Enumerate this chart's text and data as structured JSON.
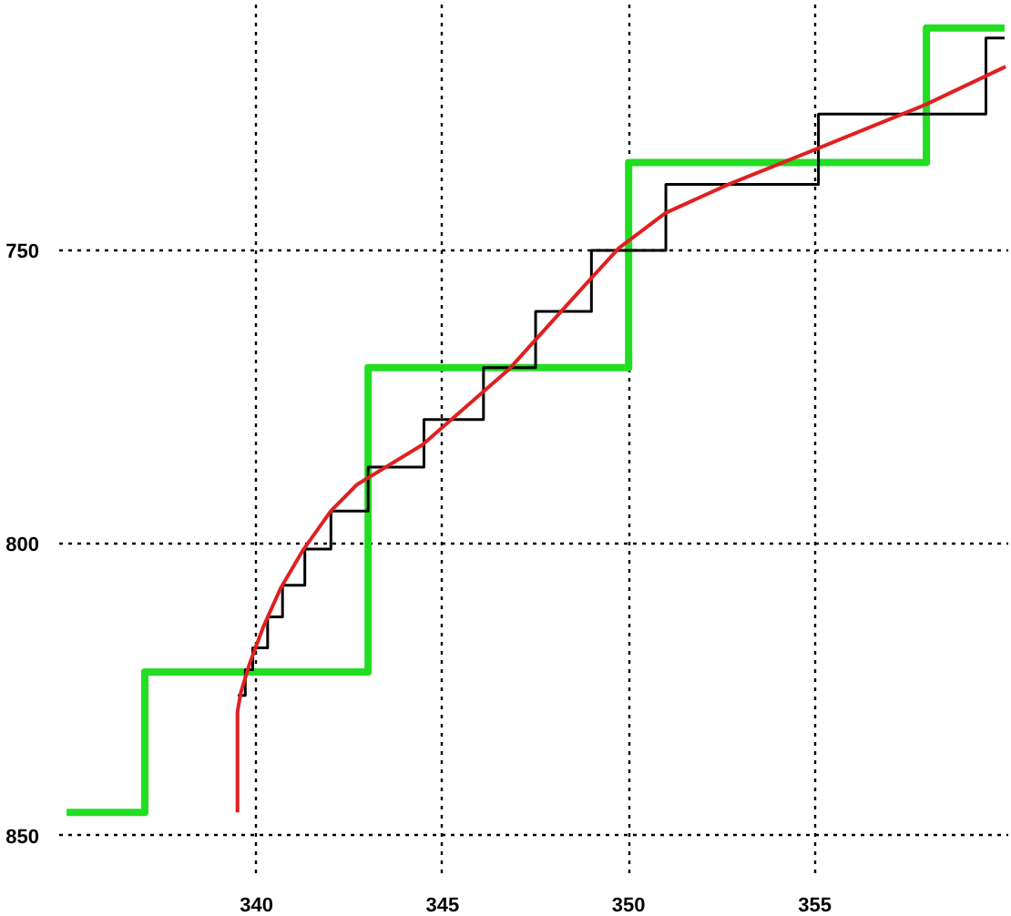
{
  "chart_data": {
    "type": "step",
    "xlim": [
      334.7,
      360.2
    ],
    "ylim": [
      857,
      708
    ],
    "xticks": [
      340,
      345,
      350,
      355
    ],
    "yticks": [
      750,
      800,
      850
    ],
    "grid": true,
    "series": [
      {
        "color": "#22dd22",
        "x": [
          334.9,
          337.0,
          343.0,
          350.0,
          358.0,
          360.1
        ],
        "values": [
          846,
          822,
          770,
          735,
          712,
          712
        ]
      },
      {
        "color": "#000000",
        "x": [
          339.5,
          339.7,
          339.9,
          340.3,
          340.7,
          341.3,
          342.0,
          343.0,
          344.5,
          346.1,
          347.5,
          349.0,
          351.0,
          355.1,
          359.6,
          360.1
        ],
        "values": [
          826,
          821.6,
          817.9,
          812.6,
          807.2,
          801,
          794.5,
          787,
          778.9,
          770,
          760.4,
          750,
          738.7,
          726.7,
          713.7,
          713.7
        ]
      },
      {
        "type": "line",
        "color": "#e02020",
        "x": [
          339.49,
          339.49,
          339.58,
          339.81,
          340.19,
          340.65,
          341.26,
          342.0,
          342.7,
          344.46,
          346.8,
          348.19,
          348.96,
          349.74,
          350.99,
          352.69,
          355.03,
          357.98,
          360.13
        ],
        "values": [
          846,
          828.8,
          825.5,
          820.7,
          814.2,
          807.7,
          801.1,
          794.5,
          790,
          783.2,
          770.2,
          760.4,
          755,
          749.6,
          743.6,
          738.7,
          732.7,
          725.1,
          718.6
        ]
      }
    ]
  }
}
